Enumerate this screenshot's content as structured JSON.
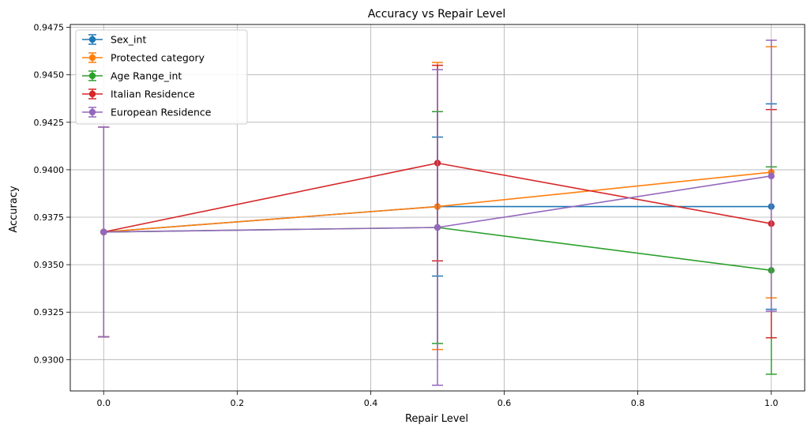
{
  "chart_data": {
    "type": "line",
    "title": "Accuracy vs Repair Level",
    "xlabel": "Repair Level",
    "ylabel": "Accuracy",
    "xlim": [
      -0.05,
      1.05
    ],
    "ylim": [
      0.92835,
      0.94765
    ],
    "xticks": [
      0.0,
      0.2,
      0.4,
      0.6,
      0.8,
      1.0
    ],
    "xtick_labels": [
      "0.0",
      "0.2",
      "0.4",
      "0.6",
      "0.8",
      "1.0"
    ],
    "yticks": [
      0.93,
      0.9325,
      0.935,
      0.9375,
      0.94,
      0.9425,
      0.945,
      0.9475
    ],
    "ytick_labels": [
      "0.9300",
      "0.9325",
      "0.9350",
      "0.9375",
      "0.9400",
      "0.9425",
      "0.9450",
      "0.9475"
    ],
    "grid": true,
    "legend_position": "top-left",
    "x": [
      0.0,
      0.5,
      1.0
    ],
    "series": [
      {
        "name": "Sex_int",
        "color": "#1f77b4",
        "values": [
          0.93672,
          0.93806,
          0.93806
        ],
        "err_low": [
          0.9312,
          0.9344,
          0.93265
        ],
        "err_high": [
          0.94225,
          0.94172,
          0.94347
        ]
      },
      {
        "name": "Protected category",
        "color": "#ff7f0e",
        "values": [
          0.93672,
          0.93806,
          0.93987
        ],
        "err_low": [
          0.9312,
          0.93053,
          0.93325
        ],
        "err_high": [
          0.94225,
          0.94565,
          0.94648
        ]
      },
      {
        "name": "Age Range_int",
        "color": "#2ca02c",
        "values": [
          0.93672,
          0.93696,
          0.9347
        ],
        "err_low": [
          0.9312,
          0.93085,
          0.92923
        ],
        "err_high": [
          0.94225,
          0.94306,
          0.94015
        ]
      },
      {
        "name": "Italian Residence",
        "color": "#d62728",
        "values": [
          0.93672,
          0.94035,
          0.93716
        ],
        "err_low": [
          0.9312,
          0.9352,
          0.93115
        ],
        "err_high": [
          0.94225,
          0.9455,
          0.94317
        ]
      },
      {
        "name": "European Residence",
        "color": "#9467bd",
        "values": [
          0.93672,
          0.93696,
          0.93967
        ],
        "err_low": [
          0.9312,
          0.92865,
          0.93255
        ],
        "err_high": [
          0.94225,
          0.94527,
          0.94682
        ]
      }
    ]
  }
}
